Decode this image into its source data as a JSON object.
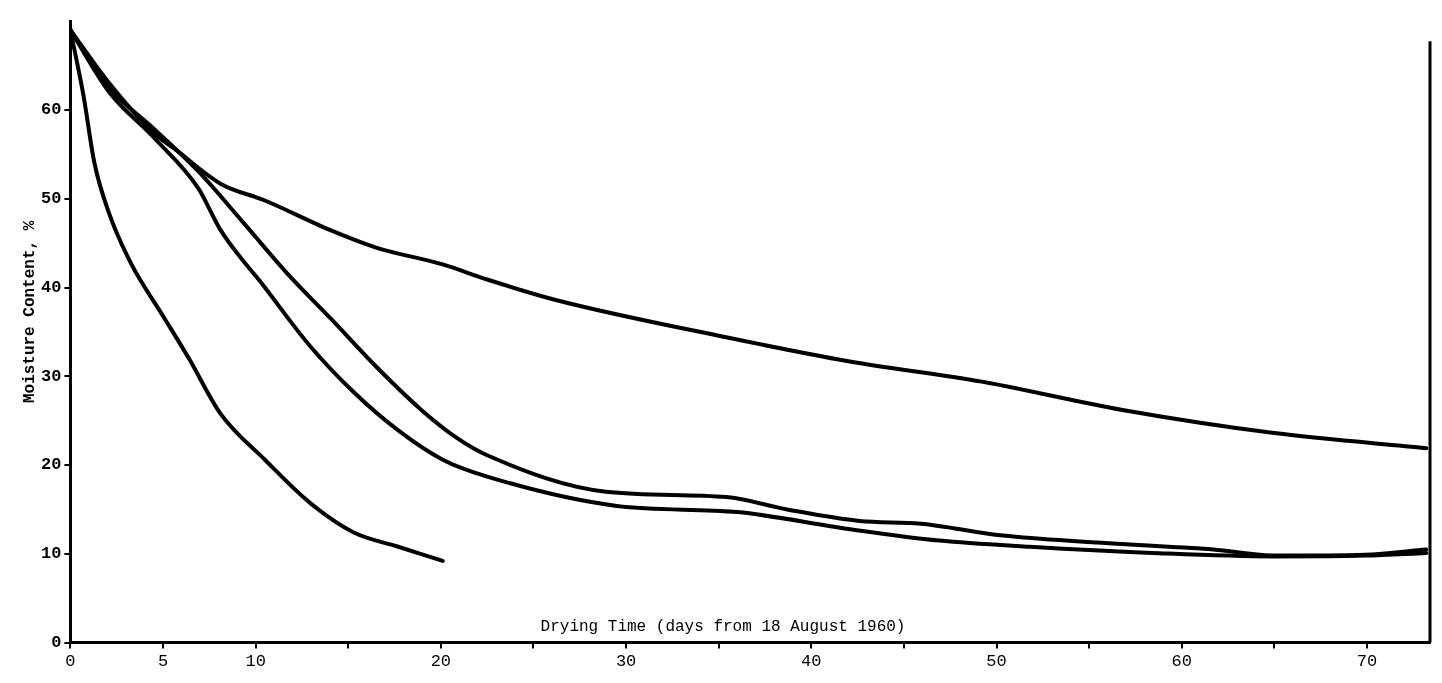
{
  "chart_data": {
    "type": "line",
    "xlabel": "Drying Time (days from 18 August 1960)",
    "ylabel": "Moisture Content, %",
    "xlim": [
      0,
      73.4
    ],
    "ylim": [
      0,
      70
    ],
    "xticks": [
      0,
      5,
      10,
      {
        "value": 15,
        "label": null
      },
      20,
      {
        "value": 25,
        "label": null
      },
      30,
      {
        "value": 35,
        "label": null
      },
      40,
      {
        "value": 45,
        "label": null
      },
      50,
      {
        "value": 55,
        "label": null
      },
      60,
      {
        "value": 65,
        "label": null
      },
      70
    ],
    "yticks": [
      0,
      10,
      20,
      30,
      40,
      50,
      60
    ],
    "grid": false,
    "legend": false,
    "marker": "none",
    "line_style": "solid",
    "series": [
      {
        "color": "#000000",
        "x": [
          0,
          2.1,
          4.5,
          5.7,
          8.1,
          10.5,
          14.1,
          16.5,
          20.1,
          22.5,
          26.2,
          35.4,
          42,
          49.2,
          56.8,
          65,
          73.2
        ],
        "values": [
          69,
          63,
          57.4,
          55.5,
          51.7,
          49.8,
          46.4,
          44.5,
          42.6,
          40.9,
          38.6,
          34.4,
          31.7,
          29.4,
          26.2,
          23.6,
          21.9
        ]
      },
      {
        "color": "#000000",
        "x": [
          0,
          2.1,
          4.5,
          6.9,
          9.3,
          11.7,
          14.1,
          16.5,
          18.9,
          20.9,
          22.5,
          28.9,
          35.4,
          38.7,
          42.6,
          45.9,
          50.2,
          56.8,
          61.7,
          65,
          69.9,
          73.2
        ],
        "values": [
          69,
          62.5,
          57.9,
          53.1,
          47.4,
          41.6,
          36.4,
          31.1,
          26.3,
          23,
          21.1,
          17,
          16.4,
          15,
          13.7,
          13.4,
          12.1,
          11.1,
          10.5,
          9.8,
          9.9,
          10.5
        ]
      },
      {
        "color": "#000000",
        "x": [
          0,
          2.1,
          4.5,
          6.9,
          8.1,
          10.5,
          12.9,
          15.3,
          17.7,
          20.1,
          22.5,
          29.5,
          36,
          42,
          46.9,
          51.8,
          58.4,
          65,
          69.9,
          73.2
        ],
        "values": [
          69,
          62,
          56.9,
          51.2,
          46.5,
          40,
          33.5,
          28.2,
          23.9,
          20.6,
          18.7,
          15.4,
          14.7,
          12.8,
          11.5,
          10.8,
          10.1,
          9.7,
          9.8,
          10.1
        ]
      },
      {
        "color": "#000000",
        "x": [
          0,
          0.7,
          1.3,
          2.1,
          3.3,
          5,
          6.4,
          8.1,
          10.5,
          12.9,
          15.3,
          17.7,
          20.1
        ],
        "values": [
          69,
          61.7,
          54,
          48.3,
          42.6,
          36.8,
          32,
          25.8,
          20.6,
          15.8,
          12.4,
          10.8,
          9.2
        ]
      }
    ]
  }
}
